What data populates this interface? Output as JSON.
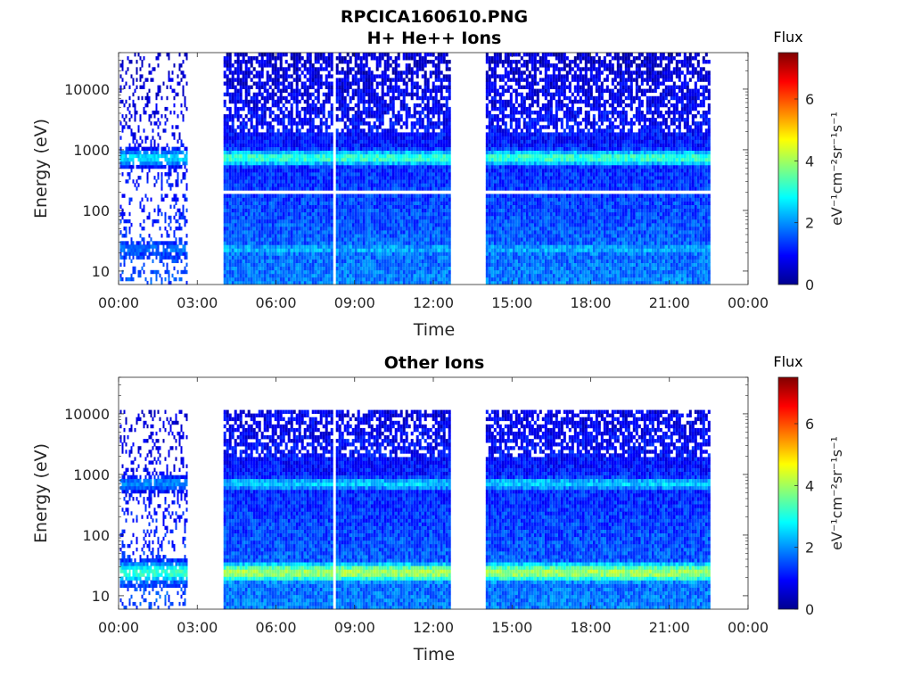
{
  "figure": {
    "title_line1": "RPCICA160610.PNG",
    "colorbar_title": "Flux",
    "colorbar_unit": "eV⁻¹cm⁻²sr⁻¹s⁻¹"
  },
  "chart_data": [
    {
      "type": "heatmap",
      "title": "H+ He++ Ions",
      "xlabel": "Time",
      "ylabel": "Energy (eV)",
      "x_ticks": [
        "00:00",
        "03:00",
        "06:00",
        "09:00",
        "12:00",
        "15:00",
        "18:00",
        "21:00",
        "00:00"
      ],
      "xlim_hours": [
        0,
        24
      ],
      "y_scale": "log",
      "ylim_eV": [
        6,
        40000
      ],
      "y_ticks": [
        "10",
        "100",
        "1000",
        "10000"
      ],
      "colorbar": {
        "label": "Flux",
        "range": [
          0,
          7.5
        ],
        "ticks": [
          "0",
          "2",
          "4",
          "6"
        ]
      },
      "data_blocks_hours": [
        [
          0.05,
          2.6
        ],
        [
          4.0,
          12.65
        ],
        [
          14.0,
          22.55
        ]
      ],
      "gaps_hours": [
        [
          2.7,
          4.0
        ],
        [
          12.7,
          14.0
        ],
        [
          22.6,
          24.0
        ]
      ],
      "features": [
        {
          "name": "Band near 700 eV",
          "energy_eV": [
            500,
            1100
          ],
          "level": 3.2
        },
        {
          "name": "Low-energy band",
          "energy_eV": [
            15,
            35
          ],
          "level": 2.2
        }
      ],
      "blank_line_energy_eV": 200,
      "blank_line_time_hours": 8.15
    },
    {
      "type": "heatmap",
      "title": "Other Ions",
      "xlabel": "Time",
      "ylabel": "Energy (eV)",
      "x_ticks": [
        "00:00",
        "03:00",
        "06:00",
        "09:00",
        "12:00",
        "15:00",
        "18:00",
        "21:00",
        "00:00"
      ],
      "xlim_hours": [
        0,
        24
      ],
      "y_scale": "log",
      "ylim_eV": [
        6,
        40000
      ],
      "y_ticks": [
        "10",
        "100",
        "1000",
        "10000"
      ],
      "colorbar": {
        "label": "Flux",
        "range": [
          0,
          7.5
        ],
        "ticks": [
          "0",
          "2",
          "4",
          "6"
        ]
      },
      "data_blocks_hours": [
        [
          0.05,
          2.6
        ],
        [
          4.0,
          12.65
        ],
        [
          14.0,
          22.55
        ]
      ],
      "data_ceiling_eV": 11000,
      "features": [
        {
          "name": "Low-energy band",
          "energy_eV": [
            15,
            40
          ],
          "level": 4.0
        },
        {
          "name": "Band near 700 eV",
          "energy_eV": [
            500,
            1000
          ],
          "level": 2.5
        }
      ],
      "blank_line_time_hours": 8.15
    }
  ],
  "colors": {
    "colormap": [
      "#00008f",
      "#0000ff",
      "#0080ff",
      "#00ffff",
      "#80ff80",
      "#ffff00",
      "#ff8000",
      "#ff0000",
      "#800000"
    ],
    "axis": "#262626",
    "background": "#ffffff"
  }
}
